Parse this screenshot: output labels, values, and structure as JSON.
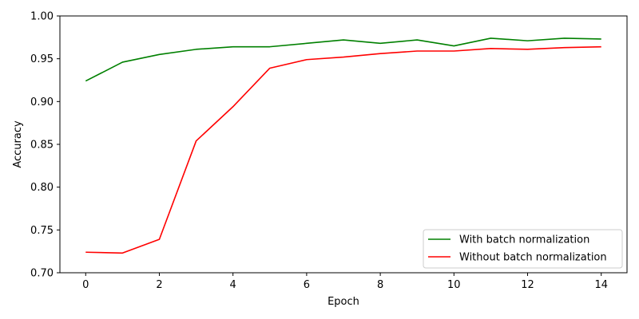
{
  "chart_data": {
    "type": "line",
    "title": "",
    "xlabel": "Epoch",
    "ylabel": "Accuracy",
    "x": [
      0,
      1,
      2,
      3,
      4,
      5,
      6,
      7,
      8,
      9,
      10,
      11,
      12,
      13,
      14
    ],
    "xlim": [
      -0.7,
      14.7
    ],
    "ylim": [
      0.7,
      1.0
    ],
    "xticks": [
      0,
      2,
      4,
      6,
      8,
      10,
      12,
      14
    ],
    "yticks": [
      0.7,
      0.75,
      0.8,
      0.85,
      0.9,
      0.95,
      1.0
    ],
    "grid": false,
    "legend_position": "bottom-right",
    "series": [
      {
        "name": "With batch normalization",
        "color": "#008000",
        "values": [
          0.924,
          0.946,
          0.955,
          0.961,
          0.964,
          0.964,
          0.968,
          0.972,
          0.968,
          0.972,
          0.965,
          0.974,
          0.971,
          0.974,
          0.973
        ]
      },
      {
        "name": "Without batch normalization",
        "color": "#ff0000",
        "values": [
          0.724,
          0.723,
          0.739,
          0.854,
          0.894,
          0.939,
          0.949,
          0.952,
          0.956,
          0.959,
          0.959,
          0.962,
          0.961,
          0.963,
          0.964
        ]
      }
    ]
  }
}
